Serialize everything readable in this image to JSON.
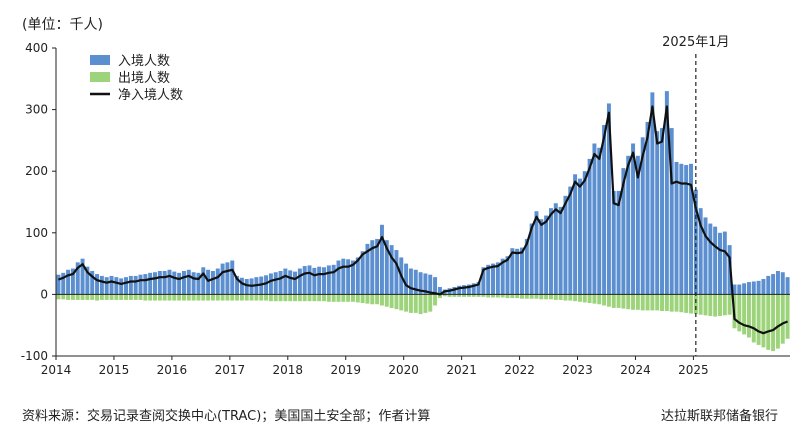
{
  "labels": {
    "unit": "(单位：千人)",
    "source": "资料来源：交易记录查阅交换中心(TRAC)；美国国土安全部；作者计算",
    "organization": "达拉斯联邦储备银行"
  },
  "colors": {
    "inflow": "#5b8fd0",
    "outflow": "#9dd47b",
    "net": "#111111"
  },
  "chart_data": {
    "type": "bar",
    "x_start": "2014-01",
    "x_end": "2025-10",
    "ylim": [
      -100,
      400
    ],
    "yticks": [
      -100,
      0,
      100,
      200,
      300,
      400
    ],
    "year_ticks": [
      "2014",
      "2015",
      "2016",
      "2017",
      "2018",
      "2019",
      "2020",
      "2021",
      "2022",
      "2023",
      "2024",
      "2025"
    ],
    "annotation": {
      "label": "2025年1月",
      "month": "2025-01"
    },
    "legend": {
      "placement": "top-left"
    },
    "series": [
      {
        "name": "入境人数",
        "kind": "bar",
        "values": [
          32,
          35,
          40,
          42,
          52,
          58,
          45,
          38,
          33,
          30,
          28,
          30,
          28,
          26,
          28,
          30,
          30,
          32,
          33,
          35,
          36,
          38,
          38,
          40,
          37,
          35,
          38,
          40,
          36,
          35,
          44,
          40,
          38,
          42,
          50,
          52,
          55,
          30,
          27,
          25,
          26,
          28,
          29,
          31,
          34,
          36,
          38,
          42,
          39,
          37,
          42,
          46,
          47,
          43,
          45,
          44,
          47,
          48,
          55,
          58,
          57,
          55,
          60,
          70,
          82,
          88,
          90,
          113,
          88,
          80,
          72,
          60,
          50,
          42,
          40,
          36,
          34,
          32,
          28,
          12,
          8,
          10,
          12,
          14,
          15,
          16,
          18,
          20,
          44,
          48,
          50,
          52,
          58,
          62,
          75,
          74,
          76,
          90,
          115,
          135,
          122,
          128,
          140,
          148,
          142,
          160,
          175,
          195,
          188,
          200,
          220,
          245,
          238,
          275,
          310,
          168,
          168,
          205,
          225,
          245,
          225,
          255,
          280,
          328,
          265,
          270,
          330,
          270,
          215,
          212,
          210,
          212,
          170,
          140,
          125,
          115,
          110,
          100,
          102,
          80,
          16,
          16,
          18,
          20,
          21,
          22,
          25,
          30,
          33,
          38,
          36,
          28
        ]
      },
      {
        "name": "出境人数",
        "kind": "bar",
        "values": [
          -8,
          -8,
          -9,
          -9,
          -9,
          -9,
          -9,
          -9,
          -10,
          -9,
          -9,
          -9,
          -9,
          -9,
          -9,
          -9,
          -9,
          -9,
          -10,
          -10,
          -10,
          -10,
          -10,
          -10,
          -10,
          -10,
          -10,
          -10,
          -10,
          -10,
          -10,
          -10,
          -10,
          -10,
          -10,
          -10,
          -10,
          -10,
          -10,
          -10,
          -10,
          -10,
          -10,
          -10,
          -11,
          -11,
          -11,
          -11,
          -11,
          -11,
          -11,
          -11,
          -11,
          -11,
          -11,
          -11,
          -12,
          -12,
          -12,
          -12,
          -12,
          -12,
          -13,
          -14,
          -15,
          -16,
          -16,
          -18,
          -20,
          -22,
          -24,
          -26,
          -28,
          -30,
          -30,
          -32,
          -30,
          -28,
          -18,
          -6,
          -3,
          -4,
          -4,
          -4,
          -4,
          -4,
          -4,
          -4,
          -4,
          -5,
          -5,
          -5,
          -5,
          -6,
          -6,
          -6,
          -7,
          -7,
          -7,
          -7,
          -8,
          -8,
          -8,
          -9,
          -9,
          -10,
          -10,
          -11,
          -12,
          -13,
          -14,
          -15,
          -16,
          -18,
          -20,
          -22,
          -22,
          -23,
          -24,
          -25,
          -25,
          -26,
          -26,
          -26,
          -26,
          -27,
          -27,
          -28,
          -28,
          -29,
          -30,
          -31,
          -32,
          -33,
          -34,
          -35,
          -36,
          -35,
          -34,
          -33,
          -55,
          -60,
          -65,
          -70,
          -78,
          -82,
          -86,
          -90,
          -92,
          -88,
          -80,
          -72
        ]
      },
      {
        "name": "净入境人数",
        "kind": "line",
        "values": [
          24,
          27,
          31,
          33,
          43,
          49,
          36,
          29,
          23,
          21,
          19,
          21,
          19,
          17,
          19,
          21,
          21,
          23,
          23,
          25,
          26,
          28,
          28,
          30,
          27,
          25,
          28,
          30,
          26,
          25,
          34,
          22,
          25,
          28,
          36,
          38,
          40,
          25,
          18,
          15,
          14,
          15,
          16,
          18,
          22,
          24,
          26,
          30,
          27,
          25,
          30,
          34,
          35,
          31,
          33,
          33,
          35,
          36,
          42,
          45,
          45,
          48,
          55,
          65,
          70,
          75,
          78,
          93,
          75,
          60,
          50,
          30,
          15,
          10,
          8,
          6,
          5,
          3,
          2,
          0,
          5,
          6,
          8,
          10,
          11,
          12,
          14,
          16,
          40,
          43,
          45,
          46,
          52,
          56,
          68,
          67,
          68,
          82,
          108,
          126,
          113,
          118,
          130,
          138,
          132,
          148,
          163,
          183,
          175,
          185,
          205,
          228,
          220,
          255,
          295,
          148,
          145,
          180,
          210,
          230,
          190,
          225,
          255,
          305,
          245,
          248,
          305,
          180,
          183,
          180,
          180,
          178,
          140,
          112,
          95,
          85,
          78,
          72,
          70,
          60,
          -40,
          -46,
          -50,
          -52,
          -55,
          -60,
          -63,
          -60,
          -58,
          -52,
          -47,
          -44
        ]
      }
    ]
  }
}
